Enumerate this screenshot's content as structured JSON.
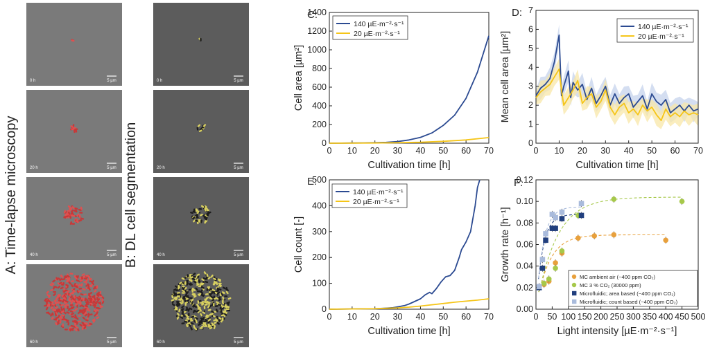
{
  "colors": {
    "blue": "#2b4a91",
    "yellow": "#f5c518",
    "blue_band": "#c6d3ec",
    "yellow_band": "#f8e7a8",
    "orange": "#e8a03c",
    "green": "#a6c84a",
    "navy": "#213f7e",
    "lightblue": "#a9bbdc"
  },
  "images": {
    "col_a_label": "A: Time-lapse microscopy",
    "col_b_label": "B: DL cell segmentation",
    "frames": [
      {
        "time": "0 h",
        "scale": "5 µm"
      },
      {
        "time": "20 h",
        "scale": "5 µm"
      },
      {
        "time": "40 h",
        "scale": "5 µm"
      },
      {
        "time": "60 h",
        "scale": "5 µm"
      }
    ]
  },
  "chart_data": [
    {
      "panel": "C:",
      "type": "line",
      "xlabel": "Cultivation time [h]",
      "ylabel": "Cell area [µm²]",
      "xlim": [
        0,
        70
      ],
      "ylim": [
        0,
        1400
      ],
      "xticks": [
        0,
        10,
        20,
        30,
        40,
        50,
        60,
        70
      ],
      "yticks": [
        0,
        200,
        400,
        600,
        800,
        1000,
        1200,
        1400
      ],
      "legend_position": "top-left",
      "series": [
        {
          "name": "140 µE·m⁻²·s⁻¹",
          "color": "#2b4a91",
          "x": [
            0,
            5,
            10,
            15,
            20,
            25,
            30,
            35,
            40,
            45,
            50,
            55,
            60,
            65,
            70
          ],
          "y": [
            0,
            1,
            2,
            3,
            5,
            9,
            18,
            35,
            62,
            110,
            190,
            300,
            480,
            760,
            1150
          ]
        },
        {
          "name": "20 µE·m⁻²·s⁻¹",
          "color": "#f5c518",
          "x": [
            0,
            10,
            20,
            30,
            40,
            50,
            60,
            70
          ],
          "y": [
            0,
            1,
            2,
            5,
            10,
            20,
            35,
            60
          ]
        }
      ]
    },
    {
      "panel": "D:",
      "type": "line",
      "xlabel": "Cultivation time [h]",
      "ylabel": "Mean cell area [µm²]",
      "xlim": [
        0,
        70
      ],
      "ylim": [
        0,
        7
      ],
      "xticks": [
        0,
        10,
        20,
        30,
        40,
        50,
        60,
        70
      ],
      "yticks": [
        0,
        1,
        2,
        3,
        4,
        5,
        6,
        7
      ],
      "legend_position": "top-right",
      "series": [
        {
          "name": "140 µE·m⁻²·s⁻¹",
          "color": "#2b4a91",
          "x": [
            0,
            2,
            4,
            6,
            8,
            10,
            11,
            12,
            14,
            15,
            16,
            18,
            20,
            22,
            24,
            26,
            28,
            30,
            32,
            34,
            36,
            38,
            40,
            42,
            44,
            46,
            48,
            50,
            52,
            54,
            56,
            58,
            60,
            62,
            64,
            66,
            68,
            70
          ],
          "y": [
            2.5,
            2.9,
            3.1,
            3.4,
            4.3,
            5.7,
            2.5,
            3.0,
            3.8,
            2.4,
            3.2,
            2.8,
            3.1,
            2.3,
            2.9,
            2.1,
            2.5,
            3.0,
            2.0,
            2.6,
            2.1,
            2.4,
            2.6,
            1.9,
            2.2,
            2.5,
            1.8,
            2.6,
            2.2,
            2.0,
            2.3,
            1.6,
            1.8,
            2.0,
            1.7,
            2.0,
            1.7,
            1.8
          ]
        },
        {
          "name": "20 µE·m⁻²·s⁻¹",
          "color": "#f5c518",
          "x": [
            0,
            2,
            4,
            6,
            8,
            10,
            11,
            12,
            14,
            16,
            18,
            20,
            22,
            24,
            26,
            28,
            30,
            32,
            34,
            36,
            38,
            40,
            42,
            44,
            46,
            48,
            50,
            52,
            54,
            56,
            58,
            60,
            62,
            64,
            66,
            68,
            70
          ],
          "y": [
            2.4,
            2.7,
            2.9,
            3.1,
            3.5,
            3.9,
            2.8,
            2.0,
            2.4,
            2.8,
            3.3,
            2.1,
            2.4,
            2.6,
            1.9,
            2.2,
            2.8,
            1.9,
            1.5,
            1.9,
            2.1,
            1.6,
            1.8,
            1.5,
            2.0,
            1.7,
            1.9,
            1.5,
            1.2,
            1.8,
            1.4,
            1.6,
            1.4,
            1.7,
            1.5,
            1.6,
            1.5
          ]
        }
      ]
    },
    {
      "panel": "E:",
      "type": "line",
      "xlabel": "Cultivation time [h]",
      "ylabel": "Cell count [-]",
      "xlim": [
        0,
        70
      ],
      "ylim": [
        0,
        500
      ],
      "xticks": [
        0,
        10,
        20,
        30,
        40,
        50,
        60,
        70
      ],
      "yticks": [
        0,
        100,
        200,
        300,
        400,
        500
      ],
      "legend_position": "top-left",
      "series": [
        {
          "name": "140 µE·m⁻²·s⁻¹",
          "color": "#2b4a91",
          "x": [
            0,
            10,
            20,
            25,
            28,
            30,
            33,
            35,
            37,
            40,
            42,
            44,
            45,
            47,
            49,
            51,
            53,
            55,
            57,
            58,
            60,
            62,
            64,
            65,
            66
          ],
          "y": [
            0,
            1,
            2,
            4,
            6,
            9,
            14,
            20,
            28,
            40,
            55,
            65,
            60,
            80,
            105,
            125,
            130,
            150,
            200,
            230,
            260,
            300,
            400,
            470,
            500
          ]
        },
        {
          "name": "20 µE·m⁻²·s⁻¹",
          "color": "#f5c518",
          "x": [
            0,
            10,
            20,
            30,
            35,
            40,
            45,
            50,
            55,
            60,
            65,
            70
          ],
          "y": [
            0,
            1,
            2,
            5,
            8,
            12,
            17,
            22,
            27,
            31,
            35,
            40
          ]
        }
      ]
    },
    {
      "panel": "F:",
      "type": "scatter",
      "xlabel": "Light intensity [µE·m⁻²·s⁻¹]",
      "ylabel": "Growth rate [h⁻¹]",
      "xlim": [
        0,
        500
      ],
      "ylim": [
        0,
        0.12
      ],
      "xticks": [
        0,
        50,
        100,
        150,
        200,
        250,
        300,
        350,
        400,
        450,
        500
      ],
      "yticks": [
        0.0,
        0.02,
        0.04,
        0.06,
        0.08,
        0.1,
        0.12
      ],
      "legend_position": "bottom-right",
      "series": [
        {
          "name": "MC ambient air (~400 ppm CO₂)",
          "color": "#e8a03c",
          "marker": "circle",
          "x": [
            25,
            40,
            60,
            80,
            130,
            180,
            240,
            400
          ],
          "y": [
            0.023,
            0.026,
            0.043,
            0.052,
            0.066,
            0.068,
            0.069,
            0.064
          ]
        },
        {
          "name": "MC 3 % CO₂ (30000 ppm)",
          "color": "#a6c84a",
          "marker": "circle",
          "x": [
            25,
            40,
            60,
            80,
            130,
            240,
            450
          ],
          "y": [
            0.024,
            0.028,
            0.038,
            0.054,
            0.087,
            0.102,
            0.1
          ]
        },
        {
          "name": "Microfluidic; area based (~400 ppm CO₂)",
          "color": "#213f7e",
          "marker": "square",
          "x": [
            10,
            20,
            30,
            50,
            60,
            80,
            140
          ],
          "y": [
            0.02,
            0.038,
            0.064,
            0.075,
            0.075,
            0.084,
            0.087
          ]
        },
        {
          "name": "Microfluidic; count based (~400 ppm CO₂)",
          "color": "#a9bbdc",
          "marker": "square",
          "x": [
            10,
            20,
            30,
            50,
            60,
            80,
            140
          ],
          "y": [
            0.021,
            0.046,
            0.07,
            0.088,
            0.085,
            0.09,
            0.098
          ]
        }
      ]
    }
  ]
}
